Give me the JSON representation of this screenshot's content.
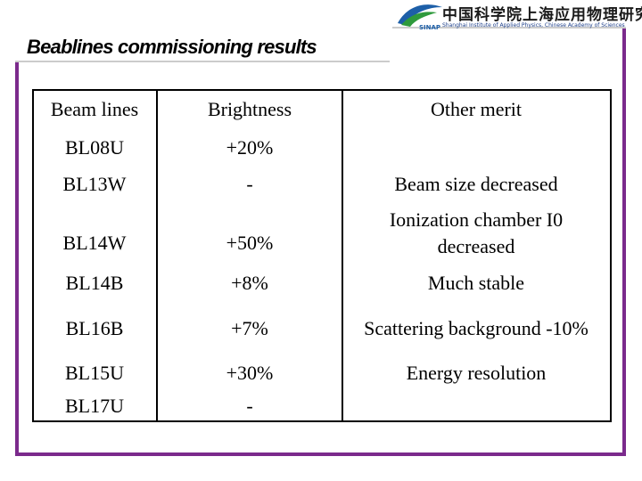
{
  "header": {
    "title": "Beablines commissioning results",
    "logo": {
      "chinese_name": "中国科学院上海应用物理研究所",
      "english_name": "Shanghai Institute of Applied Physics, Chinese Academy of Sciences",
      "abbreviation": "SINAP"
    }
  },
  "table": {
    "columns": [
      "Beam lines",
      "Brightness",
      "Other merit"
    ],
    "rows": [
      [
        "BL08U",
        "+20%",
        null
      ],
      [
        "BL13W",
        "-",
        "Beam size decreased"
      ],
      [
        "BL14W",
        "+50%",
        "Ionization chamber I0 decreased"
      ],
      [
        "BL14B",
        "+8%",
        "Much stable"
      ],
      [
        "BL16B",
        "+7%",
        "Scattering background -10%"
      ],
      [
        "BL15U",
        "+30%",
        "Energy resolution"
      ],
      [
        "BL17U",
        "-",
        null
      ]
    ]
  }
}
